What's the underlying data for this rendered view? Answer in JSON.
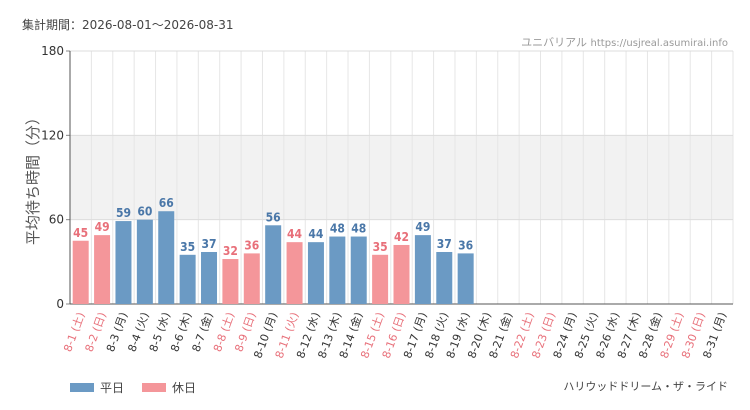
{
  "header": {
    "period_label": "集計期間：2026-08-01〜2026-08-31",
    "source_name": "ユニバリアル",
    "source_url": "https://usjreal.asumirai.info"
  },
  "footer": {
    "attraction": "ハリウッドドリーム・ザ・ライド"
  },
  "chart_data": {
    "type": "bar",
    "ylabel": "平均待ち時間（分）",
    "ylim": [
      0,
      180
    ],
    "yticks": [
      0,
      60,
      120,
      180
    ],
    "grid": true,
    "legend_position": "bottom-left",
    "shaded_band": [
      60,
      120
    ],
    "categories": [
      "8-1 (土)",
      "8-2 (日)",
      "8-3 (月)",
      "8-4 (火)",
      "8-5 (水)",
      "8-6 (木)",
      "8-7 (金)",
      "8-8 (土)",
      "8-9 (日)",
      "8-10 (月)",
      "8-11 (火)",
      "8-12 (水)",
      "8-13 (木)",
      "8-14 (金)",
      "8-15 (土)",
      "8-16 (日)",
      "8-17 (月)",
      "8-18 (火)",
      "8-19 (水)",
      "8-20 (木)",
      "8-21 (金)",
      "8-22 (土)",
      "8-23 (日)",
      "8-24 (月)",
      "8-25 (火)",
      "8-26 (水)",
      "8-27 (木)",
      "8-28 (金)",
      "8-29 (土)",
      "8-30 (日)",
      "8-31 (月)"
    ],
    "values": [
      45,
      49,
      59,
      60,
      66,
      35,
      37,
      32,
      36,
      56,
      44,
      44,
      48,
      48,
      35,
      42,
      49,
      37,
      36,
      null,
      null,
      null,
      null,
      null,
      null,
      null,
      null,
      null,
      null,
      null,
      null
    ],
    "holiday": [
      true,
      true,
      false,
      false,
      false,
      false,
      false,
      true,
      true,
      false,
      true,
      false,
      false,
      false,
      true,
      true,
      false,
      false,
      false,
      false,
      false,
      true,
      true,
      false,
      false,
      false,
      false,
      false,
      true,
      true,
      false
    ],
    "series": [
      {
        "name": "平日",
        "color": "#6b9ac4"
      },
      {
        "name": "休日",
        "color": "#f4969a"
      }
    ],
    "label_colors": {
      "weekday": "#4a77a8",
      "holiday": "#e8707a",
      "weekday_tick": "#333333",
      "holiday_tick": "#e8707a"
    }
  }
}
